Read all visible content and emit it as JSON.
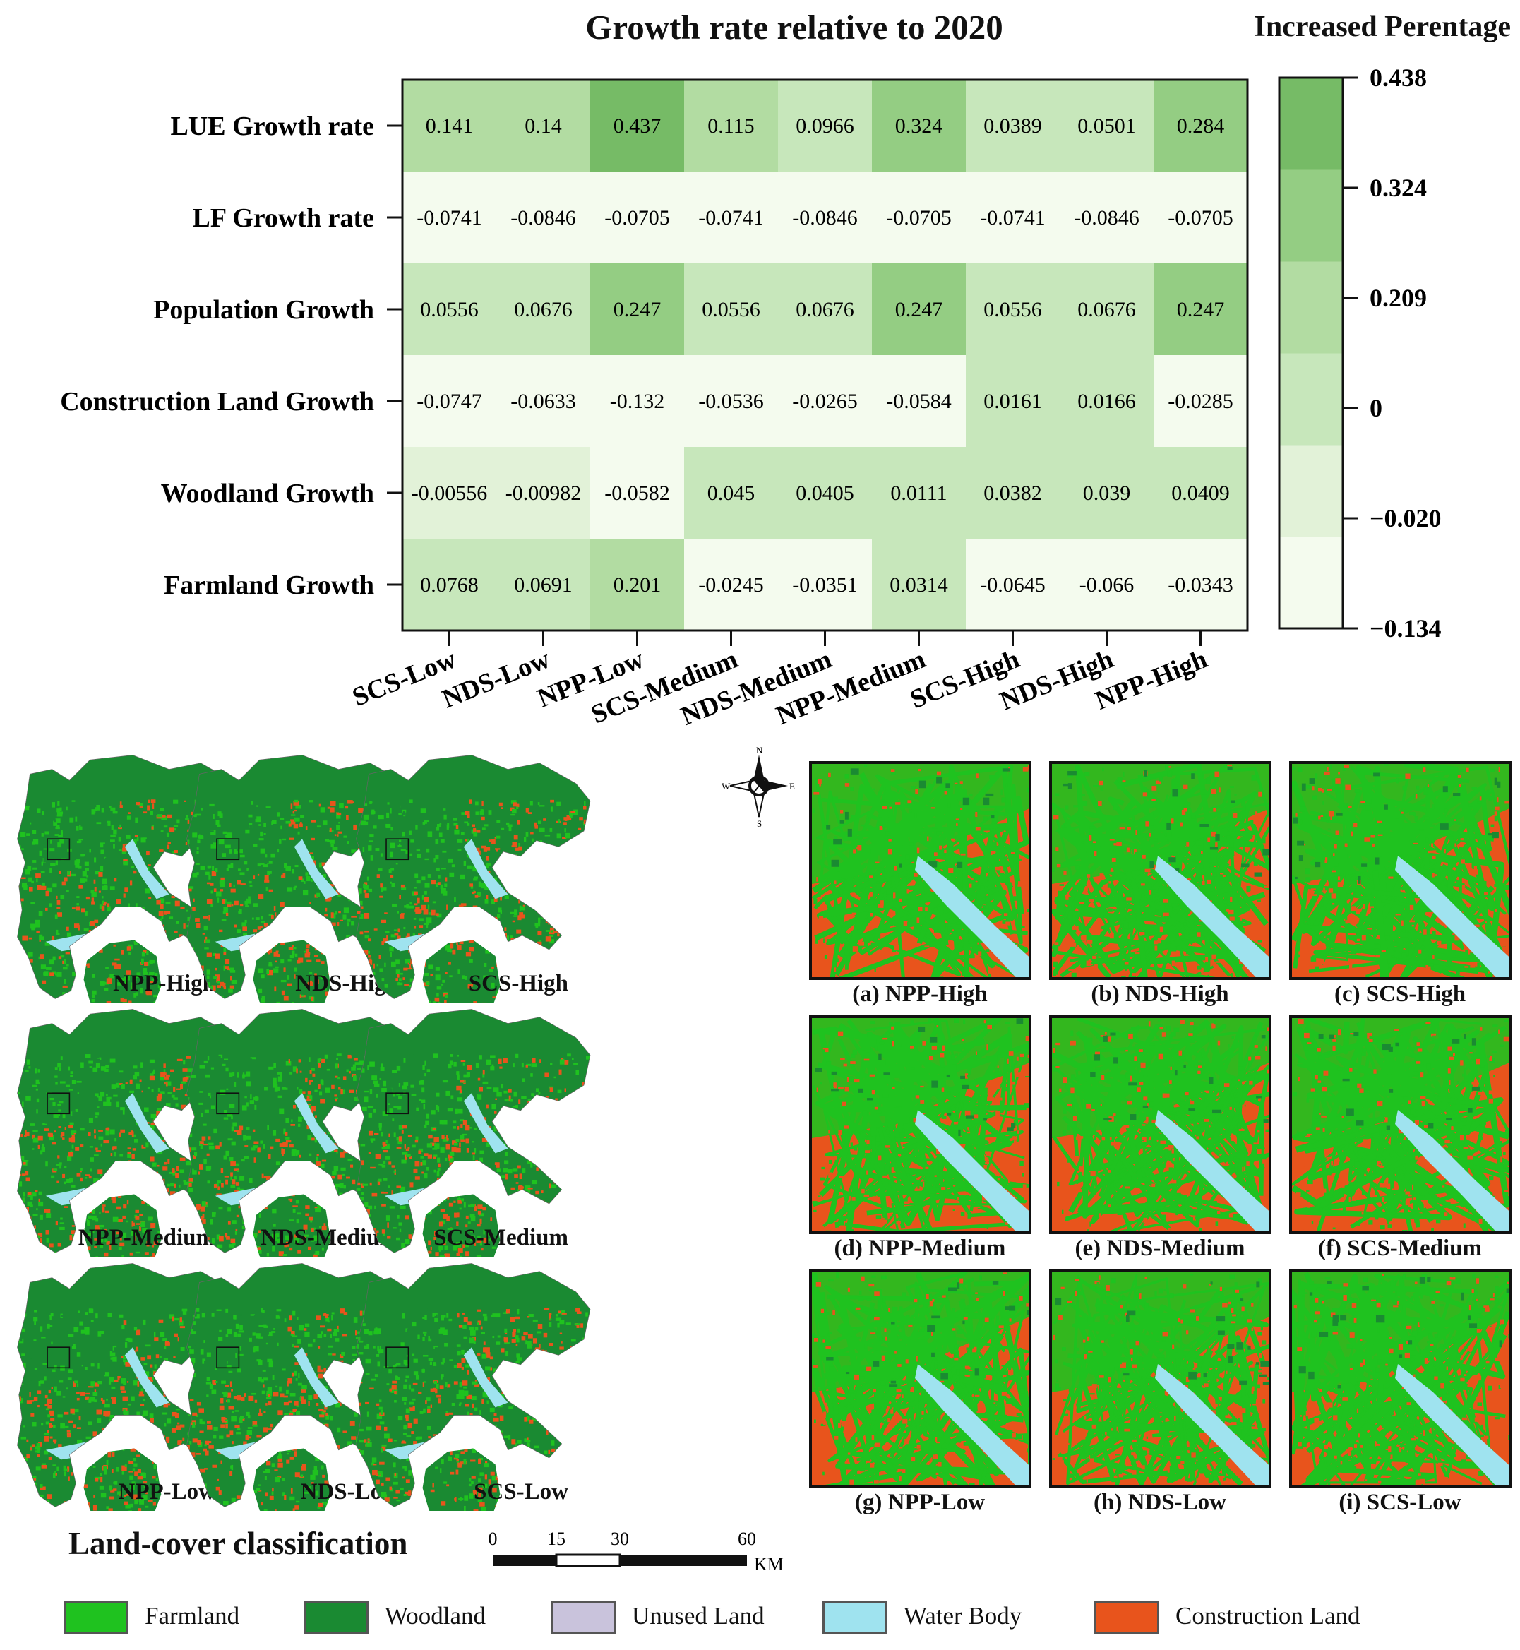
{
  "chart_data": {
    "type": "heatmap",
    "title": "Growth rate relative to 2020",
    "legend_title": "Increased Perentage",
    "rows": [
      "LUE Growth rate",
      "LF Growth rate",
      "Population Growth",
      "Construction Land Growth",
      "Woodland Growth",
      "Farmland Growth"
    ],
    "columns": [
      "SCS-Low",
      "NDS-Low",
      "NPP-Low",
      "SCS-Medium",
      "NDS-Medium",
      "NPP-Medium",
      "SCS-High",
      "NDS-High",
      "NPP-High"
    ],
    "cells": [
      [
        "0.141",
        "0.14",
        "0.437",
        "0.115",
        "0.0966",
        "0.324",
        "0.0389",
        "0.0501",
        "0.284"
      ],
      [
        "-0.0741",
        "-0.0846",
        "-0.0705",
        "-0.0741",
        "-0.0846",
        "-0.0705",
        "-0.0741",
        "-0.0846",
        "-0.0705"
      ],
      [
        "0.0556",
        "0.0676",
        "0.247",
        "0.0556",
        "0.0676",
        "0.247",
        "0.0556",
        "0.0676",
        "0.247"
      ],
      [
        "-0.0747",
        "-0.0633",
        "-0.132",
        "-0.0536",
        "-0.0265",
        "-0.0584",
        "0.0161",
        "0.0166",
        "-0.0285"
      ],
      [
        "-0.00556",
        "-0.00982",
        "-0.0582",
        "0.045",
        "0.0405",
        "0.0111",
        "0.0382",
        "0.039",
        "0.0409"
      ],
      [
        "0.0768",
        "0.0691",
        "0.201",
        "-0.0245",
        "-0.0351",
        "0.0314",
        "-0.0645",
        "-0.066",
        "-0.0343"
      ]
    ],
    "colorbar": {
      "ticks": [
        "0.438",
        "0.324",
        "0.209",
        "0",
        "−0.020",
        "−0.134"
      ],
      "bin_edges": [
        -0.134,
        -0.02,
        0,
        0.1045,
        0.209,
        0.324,
        0.438
      ],
      "colors": [
        "#f4fbee",
        "#e2f2d8",
        "#c7e7bb",
        "#b2dca2",
        "#94cd83",
        "#76bb66"
      ]
    }
  },
  "maps": {
    "labels": [
      "NPP-High",
      "NDS-High",
      "SCS-High",
      "NPP-Medium",
      "NDS-Medium",
      "SCS-Medium",
      "NPP-Low",
      "NDS-Low",
      "SCS-Low"
    ],
    "zoom_labels": [
      "(a) NPP-High",
      "(b) NDS-High",
      "(c) SCS-High",
      "(d) NPP-Medium",
      "(e) NDS-Medium",
      "(f) SCS-Medium",
      "(g) NPP-Low",
      "(h) NDS-Low",
      "(i) SCS-Low"
    ]
  },
  "compass": {
    "n": "N",
    "s": "S",
    "e": "E",
    "w": "W"
  },
  "scale": {
    "ticks": [
      "0",
      "15",
      "30",
      "60"
    ],
    "unit": "KM"
  },
  "landcover": {
    "title": "Land-cover classification",
    "items": [
      {
        "label": "Farmland",
        "color": "#1fc21f"
      },
      {
        "label": "Woodland",
        "color": "#1a8a32"
      },
      {
        "label": "Unused Land",
        "color": "#c9c3dc"
      },
      {
        "label": "Water Body",
        "color": "#9fe3ef"
      },
      {
        "label": "Construction Land",
        "color": "#e8541c"
      }
    ]
  }
}
